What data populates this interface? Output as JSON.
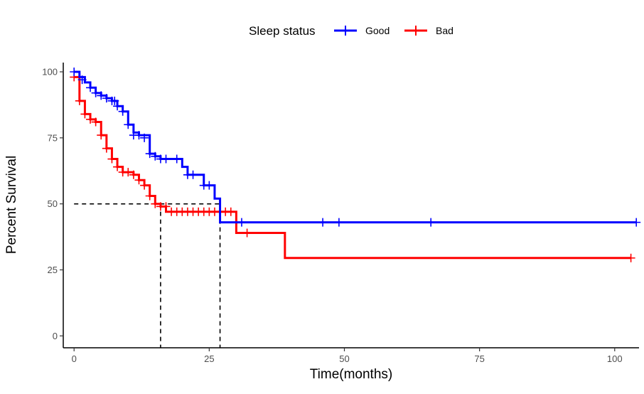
{
  "chart_data": {
    "type": "line",
    "subtype": "kaplan-meier",
    "xlabel": "Time(months)",
    "ylabel": "Percent Survival",
    "xlim": [
      -2,
      104.5
    ],
    "ylim": [
      -4.5,
      103.5
    ],
    "xticks": [
      0,
      25,
      50,
      75,
      100
    ],
    "yticks": [
      0,
      25,
      50,
      75,
      100
    ],
    "xtick_labels": [
      "0",
      "25",
      "50",
      "75",
      "100"
    ],
    "ytick_labels": [
      "0",
      "25",
      "50",
      "75",
      "100"
    ],
    "grid": false,
    "legend": {
      "title": "Sleep status",
      "position": "top",
      "entries": [
        "Good",
        "Bad"
      ]
    },
    "median_line": {
      "y": 50,
      "x_values": [
        16,
        27
      ],
      "x_start": 0,
      "style": "dashed"
    },
    "series": [
      {
        "name": "Good",
        "color": "#0000FF",
        "steps": [
          [
            0,
            100
          ],
          [
            1,
            98
          ],
          [
            2,
            96
          ],
          [
            3,
            94
          ],
          [
            4,
            92
          ],
          [
            5,
            91
          ],
          [
            6,
            90
          ],
          [
            7,
            89
          ],
          [
            8,
            87
          ],
          [
            9,
            85
          ],
          [
            10,
            80
          ],
          [
            11,
            77
          ],
          [
            12,
            76
          ],
          [
            14,
            69
          ],
          [
            15,
            68
          ],
          [
            16,
            67
          ],
          [
            20,
            64
          ],
          [
            21,
            61
          ],
          [
            24,
            57
          ],
          [
            26,
            52
          ],
          [
            27,
            43
          ],
          [
            104,
            43
          ]
        ],
        "censored": [
          [
            0,
            100
          ],
          [
            1.5,
            97
          ],
          [
            3,
            94
          ],
          [
            4,
            92
          ],
          [
            5,
            91
          ],
          [
            6,
            90
          ],
          [
            7,
            89
          ],
          [
            7.5,
            89
          ],
          [
            8,
            87
          ],
          [
            9,
            85
          ],
          [
            10,
            80
          ],
          [
            11,
            76
          ],
          [
            12,
            76
          ],
          [
            13,
            75
          ],
          [
            14,
            69
          ],
          [
            15,
            68
          ],
          [
            16,
            67
          ],
          [
            17,
            67
          ],
          [
            19,
            67
          ],
          [
            21,
            61
          ],
          [
            22,
            61
          ],
          [
            24,
            57
          ],
          [
            25,
            57
          ],
          [
            31,
            43
          ],
          [
            46,
            43
          ],
          [
            49,
            43
          ],
          [
            66,
            43
          ],
          [
            104,
            43
          ]
        ]
      },
      {
        "name": "Bad",
        "color": "#FF0000",
        "steps": [
          [
            0,
            98
          ],
          [
            1,
            89
          ],
          [
            2,
            84
          ],
          [
            3,
            82
          ],
          [
            4,
            81
          ],
          [
            5,
            76
          ],
          [
            6,
            71
          ],
          [
            7,
            67
          ],
          [
            8,
            64
          ],
          [
            9,
            62
          ],
          [
            10,
            62
          ],
          [
            11,
            61
          ],
          [
            12,
            59
          ],
          [
            13,
            57
          ],
          [
            14,
            53
          ],
          [
            15,
            50
          ],
          [
            16,
            49
          ],
          [
            17,
            47
          ],
          [
            30,
            39
          ],
          [
            39,
            29.5
          ],
          [
            103,
            29.5
          ]
        ],
        "censored": [
          [
            0,
            98
          ],
          [
            1,
            89
          ],
          [
            2,
            84
          ],
          [
            3,
            82
          ],
          [
            4,
            81
          ],
          [
            5,
            76
          ],
          [
            6,
            71
          ],
          [
            7,
            67
          ],
          [
            8,
            64
          ],
          [
            9,
            62
          ],
          [
            10,
            62
          ],
          [
            11,
            61
          ],
          [
            12,
            59
          ],
          [
            13,
            57
          ],
          [
            14,
            53
          ],
          [
            15,
            50
          ],
          [
            16,
            49
          ],
          [
            17,
            49
          ],
          [
            18,
            47
          ],
          [
            19,
            47
          ],
          [
            20,
            47
          ],
          [
            21,
            47
          ],
          [
            22,
            47
          ],
          [
            23,
            47
          ],
          [
            24,
            47
          ],
          [
            25,
            47
          ],
          [
            26,
            47
          ],
          [
            27,
            47
          ],
          [
            28,
            47
          ],
          [
            29,
            47
          ],
          [
            32,
            39
          ],
          [
            103,
            29.5
          ]
        ]
      }
    ]
  }
}
